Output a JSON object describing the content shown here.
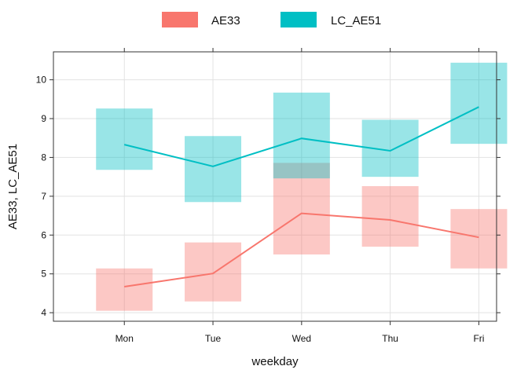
{
  "chart_data": {
    "type": "line",
    "xlabel": "weekday",
    "ylabel": "AE33, LC_AE51",
    "categories": [
      "Mon",
      "Tue",
      "Wed",
      "Thu",
      "Fri"
    ],
    "ylim": [
      3.78,
      10.72
    ],
    "yticks": [
      4,
      5,
      6,
      7,
      8,
      9,
      10
    ],
    "grid": true,
    "legend_position": "top",
    "series": [
      {
        "name": "AE33",
        "color": "#F8766D",
        "values": [
          4.67,
          5.01,
          6.56,
          6.39,
          5.94
        ],
        "lower": [
          4.05,
          4.29,
          5.5,
          5.7,
          5.14
        ],
        "upper": [
          5.14,
          5.81,
          7.86,
          7.26,
          6.67
        ]
      },
      {
        "name": "LC_AE51",
        "color": "#00BFC4",
        "values": [
          8.33,
          7.77,
          8.49,
          8.17,
          9.3
        ],
        "lower": [
          7.68,
          6.85,
          7.46,
          7.5,
          8.35
        ],
        "upper": [
          9.26,
          8.55,
          9.67,
          8.97,
          10.44
        ]
      }
    ]
  }
}
